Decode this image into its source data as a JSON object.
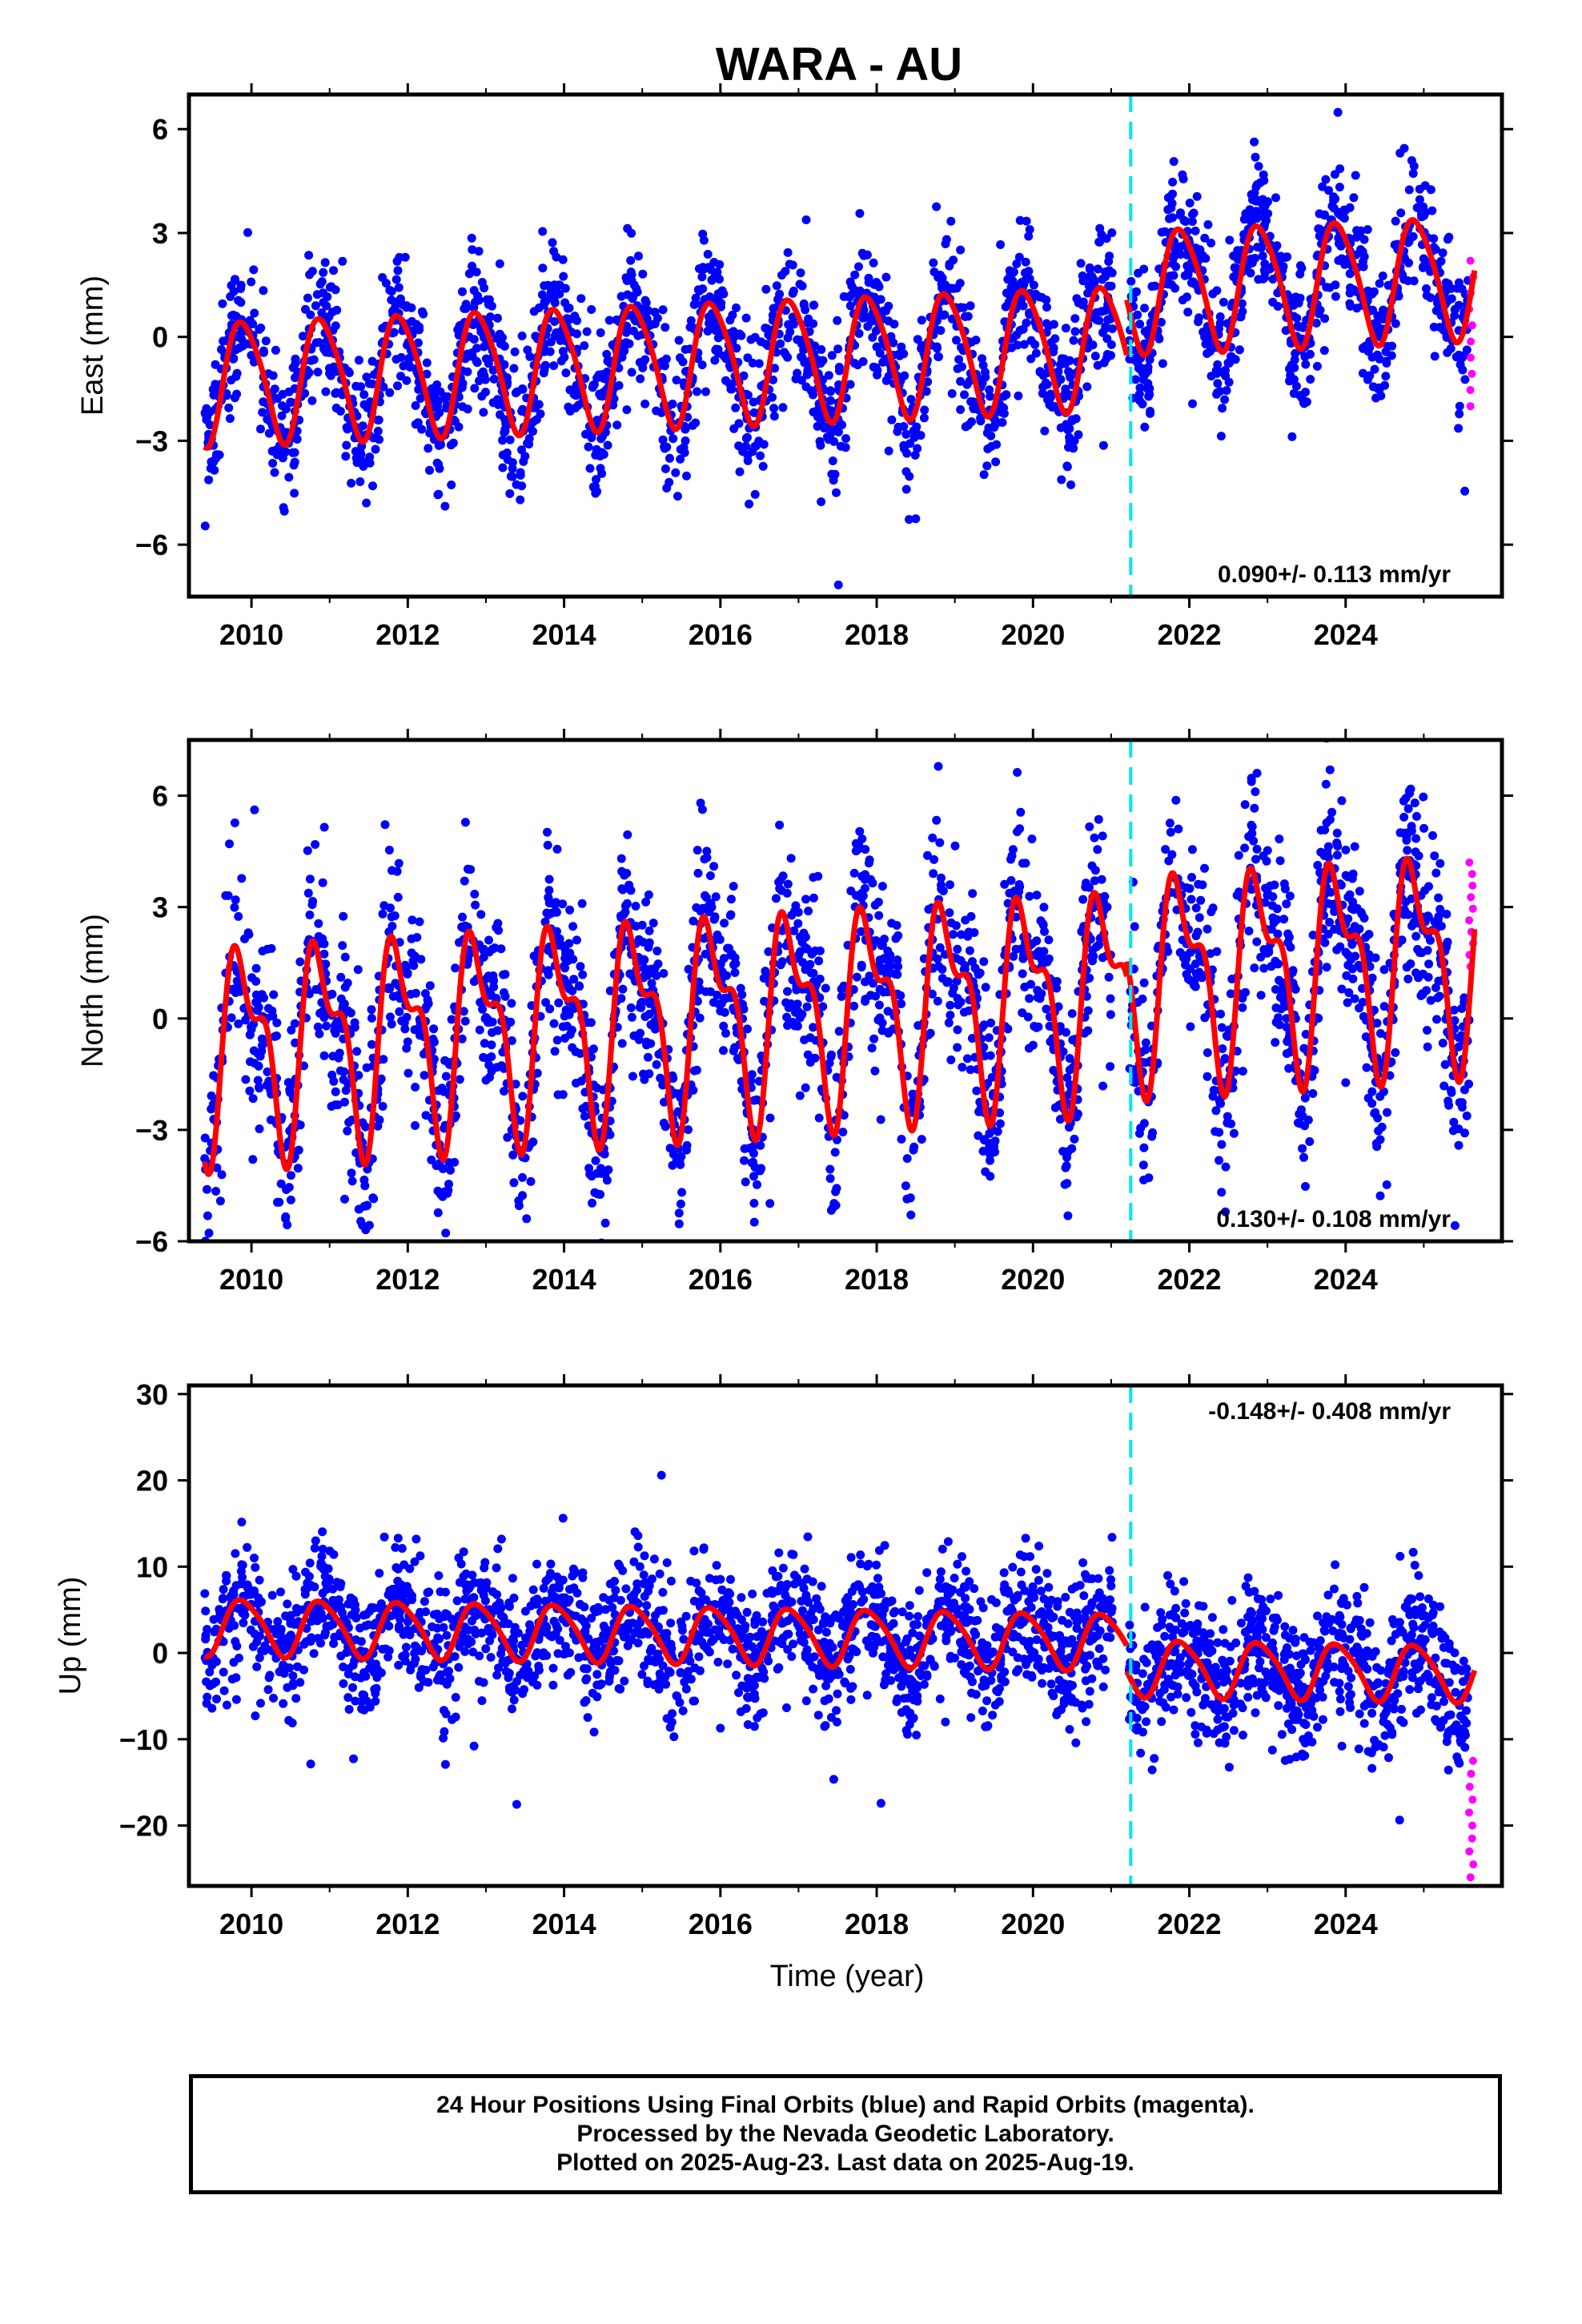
{
  "page_title": "WARA - AU",
  "colors": {
    "final_orbits": "#0000ff",
    "rapid_orbits": "#ff00ff",
    "model": "#ff0000",
    "equipment_change": "#00e5ee",
    "axes": "#000000"
  },
  "chart_data": [
    {
      "type": "scatter",
      "title": "WARA - AU",
      "ylabel": "East (mm)",
      "xlabel": "",
      "xlim": [
        2009.2,
        2026.0
      ],
      "ylim": [
        -7.5,
        7.0
      ],
      "xticks": [
        2010,
        2012,
        2014,
        2016,
        2018,
        2020,
        2022,
        2024
      ],
      "yticks": [
        -6,
        -3,
        0,
        3,
        6
      ],
      "yticklabels": [
        "−6",
        "−3",
        "0",
        "3",
        "6"
      ],
      "rate_label": "0.090+/- 0.113 mm/yr",
      "rate_position": "bottom-right",
      "series_style": [
        {
          "role": "final_orbits",
          "style": "dots"
        },
        {
          "role": "rapid_orbits",
          "style": "dots"
        },
        {
          "role": "model",
          "style": "line"
        }
      ],
      "model": {
        "break": 2021.2,
        "segments": [
          {
            "start": 2009.4,
            "end": 2021.2,
            "offset": -0.6,
            "rate": 0.09,
            "annual": 1.75,
            "semi": 0.25
          },
          {
            "start": 2021.2,
            "end": 2025.65,
            "offset": 1.0,
            "rate": 0.09,
            "annual": 1.75,
            "semi": 0.25
          }
        ]
      },
      "scatter_sd": 1.0,
      "rapid": {
        "x_start": 2025.58,
        "x_end": 2025.64,
        "y_min": -2.0,
        "y_max": 2.2
      },
      "equipment_change_x": 2021.25
    },
    {
      "type": "scatter",
      "ylabel": "North (mm)",
      "xlabel": "",
      "xlim": [
        2009.2,
        2026.0
      ],
      "ylim": [
        -6.0,
        7.5
      ],
      "xticks": [
        2010,
        2012,
        2014,
        2016,
        2018,
        2020,
        2022,
        2024
      ],
      "yticks": [
        -6,
        -3,
        0,
        3,
        6
      ],
      "yticklabels": [
        "−6",
        "−3",
        "0",
        "3",
        "6"
      ],
      "rate_label": "0.130+/- 0.108 mm/yr",
      "rate_position": "bottom-right",
      "series_style": [
        {
          "role": "final_orbits",
          "style": "dots"
        },
        {
          "role": "rapid_orbits",
          "style": "dots"
        },
        {
          "role": "model",
          "style": "line"
        }
      ],
      "model": {
        "break": 2021.2,
        "segments": [
          {
            "start": 2009.4,
            "end": 2021.2,
            "offset": 0.2,
            "rate": 0.13,
            "annual": 2.4,
            "semi": 1.2
          },
          {
            "start": 2021.2,
            "end": 2025.65,
            "offset": 0.6,
            "rate": 0.13,
            "annual": 2.4,
            "semi": 1.2
          }
        ]
      },
      "scatter_sd": 1.3,
      "rapid": {
        "x_start": 2025.58,
        "x_end": 2025.64,
        "y_min": 1.4,
        "y_max": 4.2
      },
      "equipment_change_x": 2021.25
    },
    {
      "type": "scatter",
      "ylabel": "Up (mm)",
      "xlabel": "Time (year)",
      "xlim": [
        2009.2,
        2026.0
      ],
      "ylim": [
        -27.0,
        31.0
      ],
      "xticks": [
        2010,
        2012,
        2014,
        2016,
        2018,
        2020,
        2022,
        2024
      ],
      "yticks": [
        -20,
        -10,
        0,
        10,
        20,
        30
      ],
      "yticklabels": [
        "−20",
        "−10",
        "0",
        "10",
        "20",
        "30"
      ],
      "rate_label": "-0.148+/- 0.408 mm/yr",
      "rate_position": "top-right",
      "series_style": [
        {
          "role": "final_orbits",
          "style": "dots"
        },
        {
          "role": "rapid_orbits",
          "style": "dots"
        },
        {
          "role": "model",
          "style": "line"
        }
      ],
      "model": {
        "break": 2021.2,
        "segments": [
          {
            "start": 2009.4,
            "end": 2021.2,
            "offset": 2.0,
            "rate": -0.15,
            "annual": 3.2,
            "semi": 0.5
          },
          {
            "start": 2021.2,
            "end": 2025.65,
            "offset": -1.0,
            "rate": -0.15,
            "annual": 3.2,
            "semi": 0.5
          }
        ]
      },
      "scatter_sd": 3.8,
      "rapid": {
        "x_start": 2025.58,
        "x_end": 2025.64,
        "y_min": -26.0,
        "y_max": -12.5
      },
      "equipment_change_x": 2021.25
    }
  ],
  "footer": {
    "line1": "24 Hour Positions Using Final Orbits (blue) and Rapid Orbits (magenta).",
    "line2": "Processed by the Nevada Geodetic Laboratory.",
    "line3": "Plotted on 2025-Aug-23. Last data on 2025-Aug-19."
  }
}
